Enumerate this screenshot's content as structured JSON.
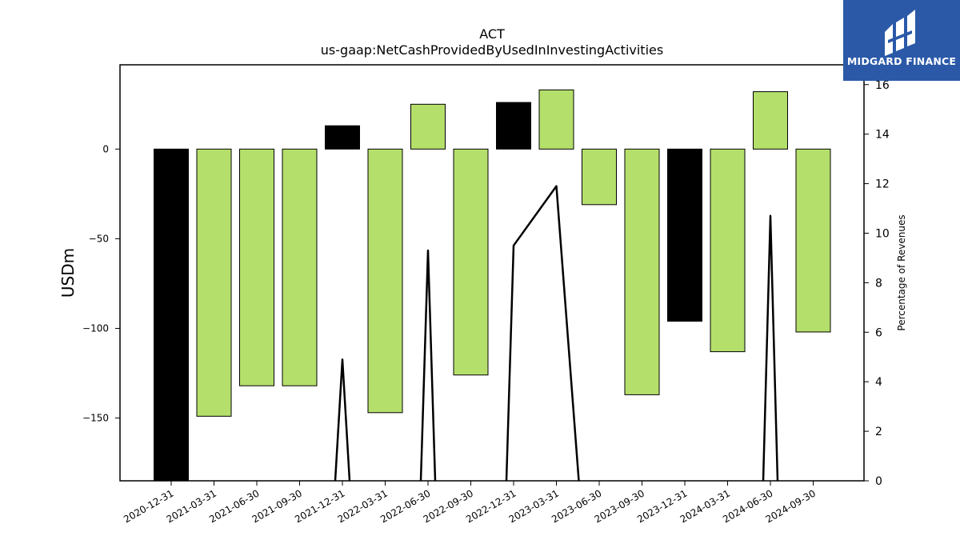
{
  "chart_data": {
    "type": "bar",
    "title": "ACT",
    "subtitle": "us-gaap:NetCashProvidedByUsedInInvestingActivities",
    "ylabel": "USDm",
    "y2label": "Percentage of Revenues",
    "categories": [
      "2020-12-31",
      "2021-03-31",
      "2021-06-30",
      "2021-09-30",
      "2021-12-31",
      "2022-03-31",
      "2022-06-30",
      "2022-09-30",
      "2022-12-31",
      "2023-03-31",
      "2023-06-30",
      "2023-09-30",
      "2023-12-31",
      "2024-03-31",
      "2024-06-30",
      "2024-09-30"
    ],
    "values": [
      -190,
      -149,
      -132,
      -132,
      13,
      -147,
      25,
      -126,
      26,
      33,
      -31,
      -137,
      -96,
      -113,
      32,
      -102
    ],
    "bar_colors": [
      "#000000",
      "#b5df6b",
      "#b5df6b",
      "#b5df6b",
      "#000000",
      "#b5df6b",
      "#b5df6b",
      "#b5df6b",
      "#000000",
      "#b5df6b",
      "#b5df6b",
      "#b5df6b",
      "#000000",
      "#b5df6b",
      "#b5df6b",
      "#b5df6b"
    ],
    "line_series": {
      "values": [
        0,
        0,
        0,
        0,
        4.9,
        0,
        9.3,
        0,
        9.5,
        11.9,
        0,
        0,
        0,
        0,
        10.7,
        0
      ],
      "color": "#000000"
    },
    "ylim": [
      -185,
      47
    ],
    "y2lim": [
      0,
      16.8
    ],
    "yticks": [
      0,
      -50,
      -100,
      -150
    ],
    "y2ticks": [
      0,
      2,
      4,
      6,
      8,
      10,
      12,
      14,
      16
    ],
    "grid": false
  },
  "logo": {
    "text": "MIDGARD FINANCE",
    "background": "#2b59a8"
  }
}
